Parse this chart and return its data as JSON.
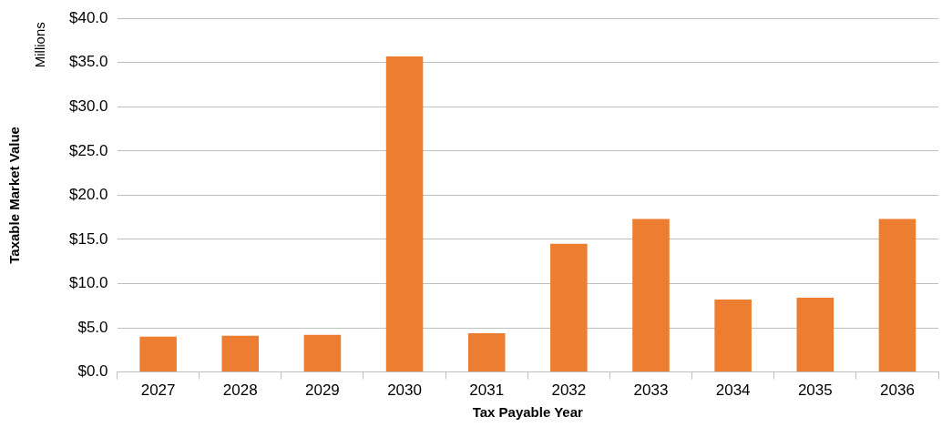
{
  "chart_data": {
    "type": "bar",
    "xlabel": "Tax Payable Year",
    "ylabel": "Taxable Market Value",
    "annotations": [
      "Millions"
    ],
    "categories": [
      "2027",
      "2028",
      "2029",
      "2030",
      "2031",
      "2032",
      "2033",
      "2034",
      "2035",
      "2036"
    ],
    "values": [
      4.0,
      4.1,
      4.2,
      35.7,
      4.4,
      14.5,
      17.3,
      8.2,
      8.4,
      17.3
    ],
    "color": "#ed7d31",
    "ylim": [
      0,
      40
    ],
    "yticks": [
      {
        "value": 0,
        "label": "$0.0"
      },
      {
        "value": 5,
        "label": "$5.0"
      },
      {
        "value": 10,
        "label": "$10.0"
      },
      {
        "value": 15,
        "label": "$15.0"
      },
      {
        "value": 20,
        "label": "$20.0"
      },
      {
        "value": 25,
        "label": "$25.0"
      },
      {
        "value": 30,
        "label": "$30.0"
      },
      {
        "value": 35,
        "label": "$35.0"
      },
      {
        "value": 40,
        "label": "$40.0"
      }
    ],
    "grid": "y",
    "legend": false
  }
}
